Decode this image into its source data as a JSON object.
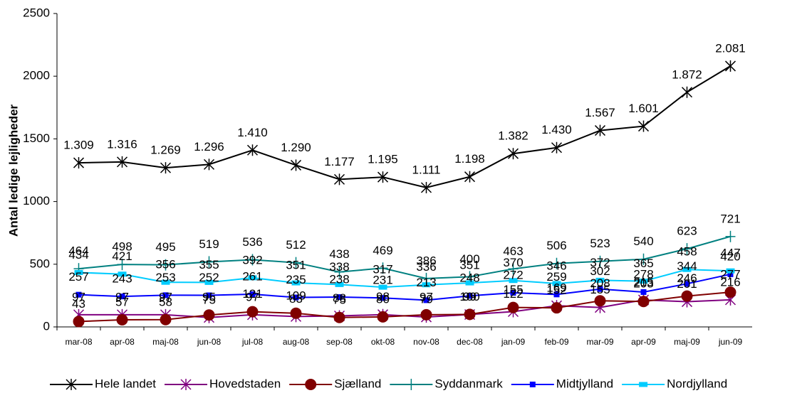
{
  "chart_data": {
    "type": "line",
    "y_label": "Antal ledige lejligheder",
    "categories": [
      "mar-08",
      "apr-08",
      "maj-08",
      "jun-08",
      "jul-08",
      "aug-08",
      "sep-08",
      "okt-08",
      "nov-08",
      "dec-08",
      "jan-09",
      "feb-09",
      "mar-09",
      "apr-09",
      "maj-09",
      "jun-09"
    ],
    "ylim": [
      0,
      2500
    ],
    "yticks": [
      0,
      500,
      1000,
      1500,
      2000,
      2500
    ],
    "grid": false,
    "series": [
      {
        "name": "Hele landet",
        "color": "#000000",
        "marker": "star",
        "values": [
          1309,
          1316,
          1269,
          1296,
          1410,
          1290,
          1177,
          1195,
          1111,
          1198,
          1382,
          1430,
          1567,
          1601,
          1872,
          2081
        ],
        "value_labels": [
          "1.309",
          "1.316",
          "1.269",
          "1.296",
          "1.410",
          "1.290",
          "1.177",
          "1.195",
          "1.111",
          "1.198",
          "1.382",
          "1.430",
          "1.567",
          "1.601",
          "1.872",
          "2.081"
        ]
      },
      {
        "name": "Hovedstaden",
        "color": "#800080",
        "marker": "star",
        "values": [
          97,
          97,
          97,
          75,
          97,
          83,
          88,
          98,
          79,
          99,
          122,
          169,
          155,
          215,
          201,
          216
        ]
      },
      {
        "name": "Sjælland",
        "color": "#800000",
        "marker": "circle",
        "values": [
          43,
          57,
          58,
          95,
          121,
          109,
          75,
          80,
          97,
          100,
          155,
          152,
          208,
          203,
          246,
          277
        ]
      },
      {
        "name": "Syddanmark",
        "color": "#008080",
        "marker": "plus",
        "values": [
          464,
          498,
          495,
          519,
          536,
          512,
          438,
          469,
          386,
          400,
          463,
          506,
          523,
          540,
          623,
          721
        ]
      },
      {
        "name": "Midtjylland",
        "color": "#0000ff",
        "marker": "square",
        "values": [
          257,
          243,
          253,
          252,
          261,
          235,
          238,
          231,
          213,
          248,
          272,
          259,
          302,
          278,
          344,
          420
        ]
      },
      {
        "name": "Nordjylland",
        "color": "#00ccff",
        "marker": "rect",
        "values": [
          434,
          421,
          356,
          355,
          392,
          351,
          338,
          317,
          336,
          351,
          370,
          346,
          372,
          365,
          458,
          447
        ]
      }
    ]
  }
}
